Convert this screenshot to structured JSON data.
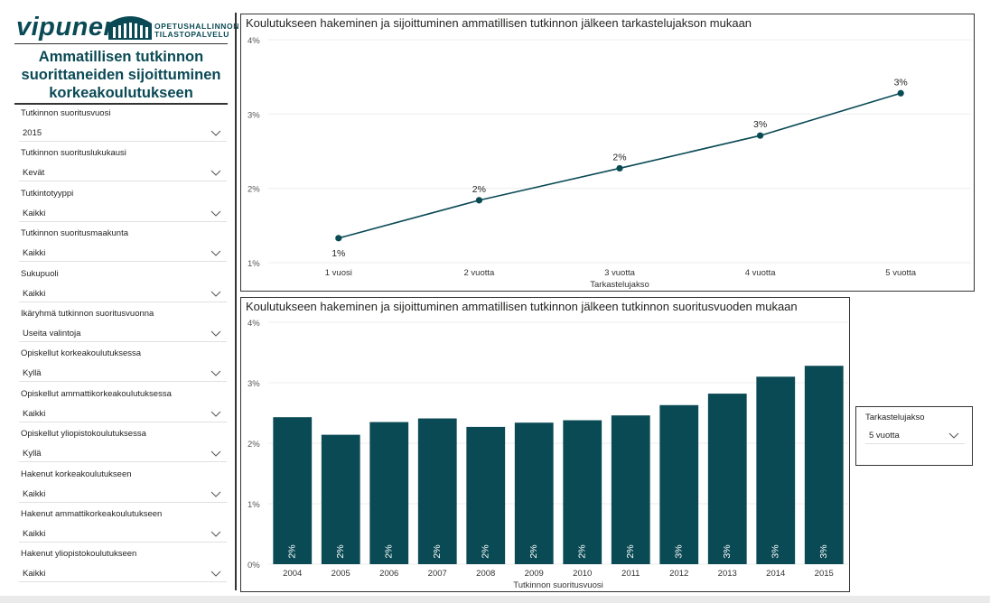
{
  "brand": {
    "logo_word": "vipunen",
    "org_line1": "OPETUSHALLINNON",
    "org_line2": "TILASTOPALVELU",
    "accent_color": "#0a4a55"
  },
  "page": {
    "title_line1": "Ammatillisen tutkinnon",
    "title_line2": "suorittaneiden sijoittuminen",
    "title_line3": "korkeakoulutukseen"
  },
  "filters": [
    {
      "label": "Tutkinnon suoritusvuosi",
      "value": "2015"
    },
    {
      "label": "Tutkinnon suorituslukukausi",
      "value": "Kevät"
    },
    {
      "label": "Tutkintotyyppi",
      "value": "Kaikki"
    },
    {
      "label": "Tutkinnon suoritusmaakunta",
      "value": "Kaikki"
    },
    {
      "label": "Sukupuoli",
      "value": "Kaikki"
    },
    {
      "label": "Ikäryhmä tutkinnon suoritusvuonna",
      "value": "Useita valintoja"
    },
    {
      "label": "Opiskellut korkeakoulutuksessa",
      "value": "Kyllä"
    },
    {
      "label": "Opiskellut ammattikorkeakoulutuksessa",
      "value": "Kaikki"
    },
    {
      "label": "Opiskellut yliopistokoulutuksessa",
      "value": "Kyllä"
    },
    {
      "label": "Hakenut korkeakoulutukseen",
      "value": "Kaikki"
    },
    {
      "label": "Hakenut ammattikorkeakoulutukseen",
      "value": "Kaikki"
    },
    {
      "label": "Hakenut yliopistokoulutukseen",
      "value": "Kaikki"
    }
  ],
  "period_slicer": {
    "label": "Tarkastelujakso",
    "value": "5 vuotta"
  },
  "chart_data": [
    {
      "type": "line",
      "title": "Koulutukseen hakeminen ja sijoittuminen ammatillisen tutkinnon jälkeen tarkastelujakson mukaan",
      "xlabel": "Tarkastelujakso",
      "ylabel": "",
      "categories": [
        "1 vuosi",
        "2 vuotta",
        "3 vuotta",
        "4 vuotta",
        "5 vuotta"
      ],
      "values": [
        1.33,
        1.84,
        2.27,
        2.71,
        3.28
      ],
      "data_labels": [
        "1%",
        "2%",
        "2%",
        "3%",
        "3%"
      ],
      "yticks": [
        "1%",
        "2%",
        "3%",
        "4%"
      ],
      "ylim": [
        1,
        4
      ],
      "grid": true,
      "color": "#0a4a55"
    },
    {
      "type": "bar",
      "title": "Koulutukseen hakeminen ja sijoittuminen ammatillisen tutkinnon jälkeen tutkinnon suoritusvuoden mukaan",
      "xlabel": "Tutkinnon suoritusvuosi",
      "ylabel": "",
      "categories": [
        "2004",
        "2005",
        "2006",
        "2007",
        "2008",
        "2009",
        "2010",
        "2011",
        "2012",
        "2013",
        "2014",
        "2015"
      ],
      "values": [
        2.43,
        2.14,
        2.35,
        2.41,
        2.27,
        2.34,
        2.38,
        2.46,
        2.63,
        2.82,
        3.1,
        3.28
      ],
      "data_labels": [
        "2%",
        "2%",
        "2%",
        "2%",
        "2%",
        "2%",
        "2%",
        "2%",
        "3%",
        "3%",
        "3%",
        "3%"
      ],
      "yticks": [
        "0%",
        "1%",
        "2%",
        "3%",
        "4%"
      ],
      "ylim": [
        0,
        4
      ],
      "grid": true,
      "color": "#0a4a55"
    }
  ]
}
